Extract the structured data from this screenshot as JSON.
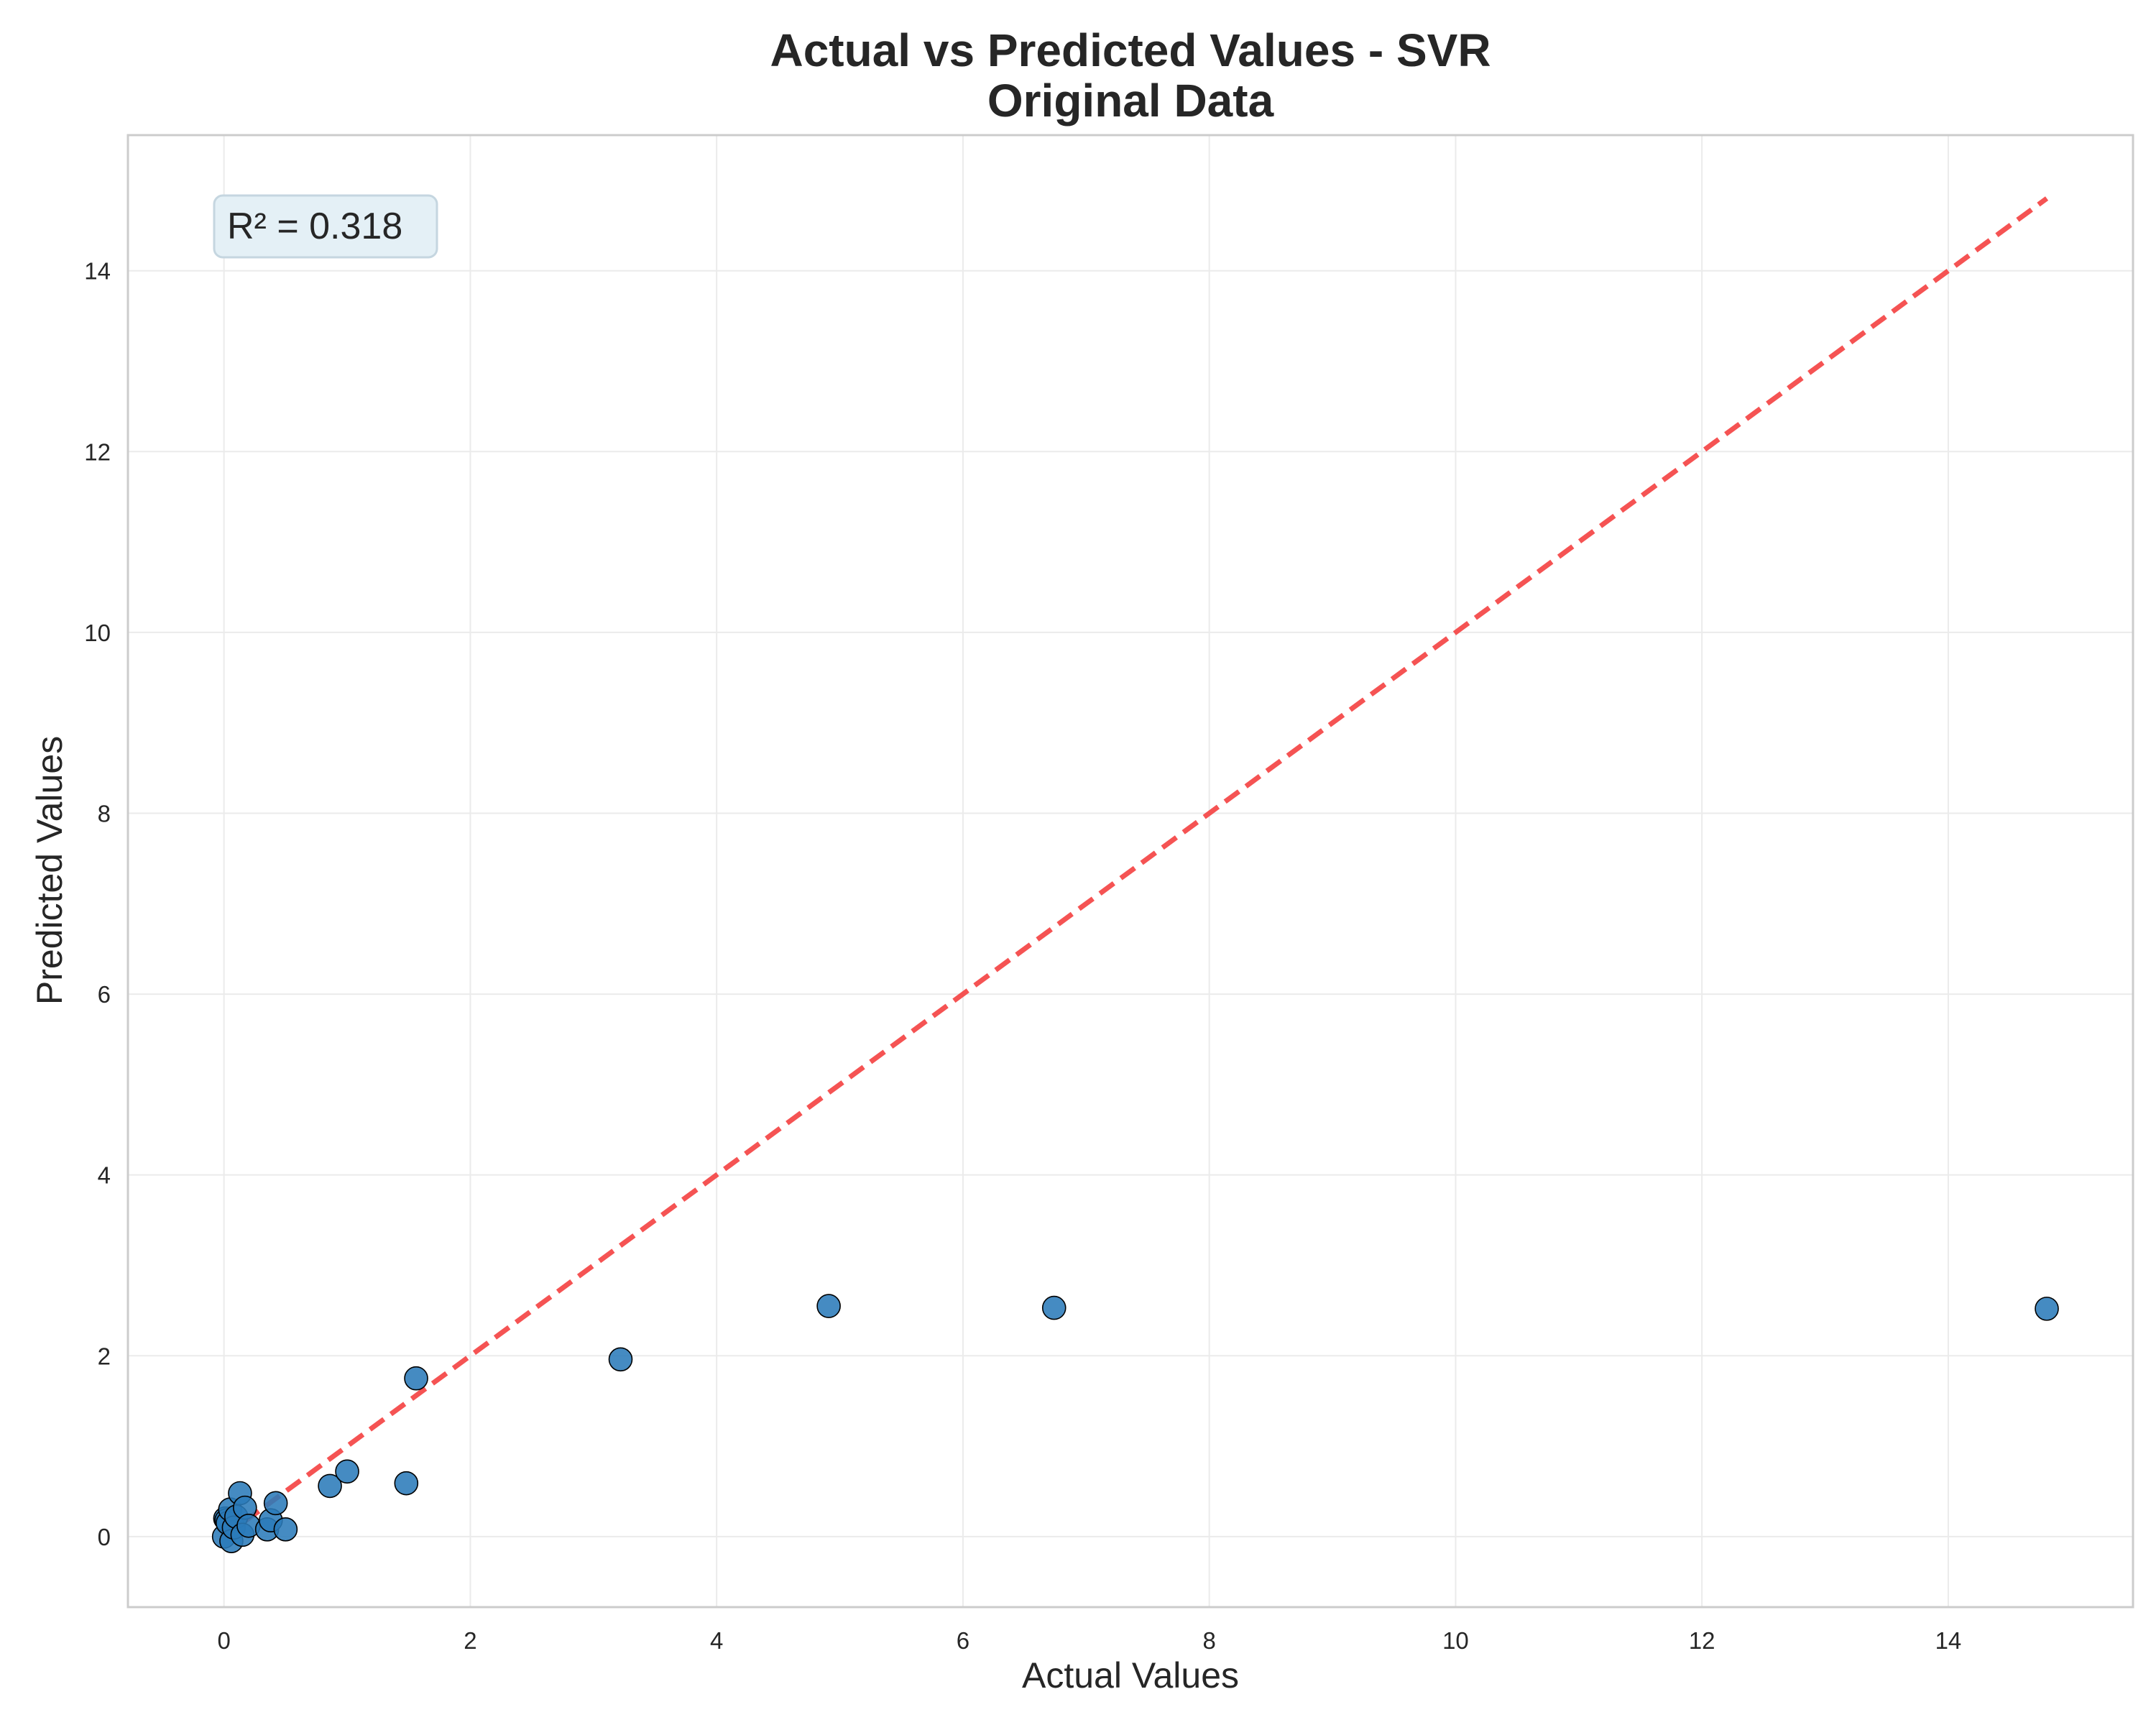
{
  "chart_data": {
    "type": "scatter",
    "title": "Actual vs Predicted Values - SVR",
    "subtitle": "Original Data",
    "xlabel": "Actual Values",
    "ylabel": "Predicted Values",
    "xlim": [
      -0.78,
      15.5
    ],
    "ylim": [
      -0.78,
      15.5
    ],
    "x_ticks": [
      0,
      2,
      4,
      6,
      8,
      10,
      12,
      14
    ],
    "y_ticks": [
      0,
      2,
      4,
      6,
      8,
      10,
      12,
      14
    ],
    "grid": true,
    "annotation": "R² = 0.318",
    "reference_line": {
      "from": [
        0,
        0
      ],
      "to": [
        14.8,
        14.8
      ],
      "style": "dashed",
      "color": "#f44a4a"
    },
    "point_color": "#2b7bba",
    "point_edge_color": "#000000",
    "points": [
      {
        "x": 0.0,
        "y": 0.0
      },
      {
        "x": 0.01,
        "y": 0.2
      },
      {
        "x": 0.02,
        "y": 0.18
      },
      {
        "x": 0.03,
        "y": 0.15
      },
      {
        "x": 0.05,
        "y": 0.3
      },
      {
        "x": 0.06,
        "y": -0.05
      },
      {
        "x": 0.08,
        "y": 0.1
      },
      {
        "x": 0.1,
        "y": 0.22
      },
      {
        "x": 0.13,
        "y": 0.48
      },
      {
        "x": 0.15,
        "y": 0.02
      },
      {
        "x": 0.17,
        "y": 0.32
      },
      {
        "x": 0.2,
        "y": 0.12
      },
      {
        "x": 0.35,
        "y": 0.08
      },
      {
        "x": 0.38,
        "y": 0.18
      },
      {
        "x": 0.42,
        "y": 0.37
      },
      {
        "x": 0.5,
        "y": 0.08
      },
      {
        "x": 0.86,
        "y": 0.56
      },
      {
        "x": 1.0,
        "y": 0.72
      },
      {
        "x": 1.48,
        "y": 0.59
      },
      {
        "x": 1.56,
        "y": 1.75
      },
      {
        "x": 3.22,
        "y": 1.96
      },
      {
        "x": 4.91,
        "y": 2.55
      },
      {
        "x": 6.74,
        "y": 2.53
      },
      {
        "x": 14.8,
        "y": 2.52
      }
    ]
  }
}
